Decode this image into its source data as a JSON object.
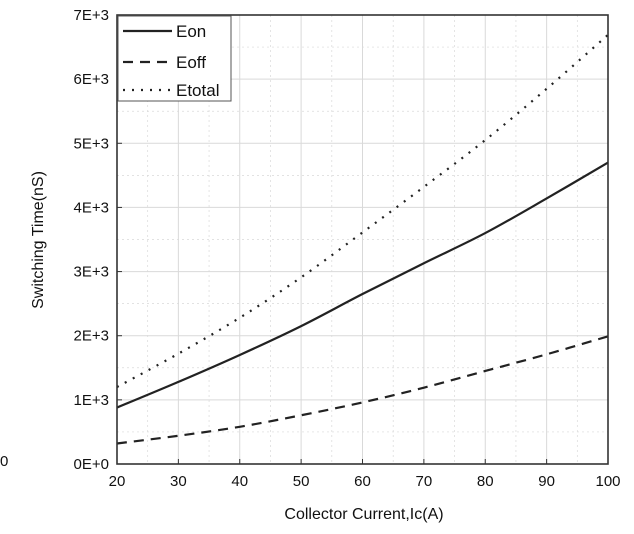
{
  "chart_data": {
    "type": "line",
    "xlabel": "Collector Current,Ic(A)",
    "ylabel": "Switching Time(nS)",
    "xlim": [
      20,
      100
    ],
    "ylim": [
      0,
      7000
    ],
    "x_ticks": [
      20,
      30,
      40,
      50,
      60,
      70,
      80,
      90,
      100
    ],
    "x_tick_labels": [
      "20",
      "30",
      "40",
      "50",
      "60",
      "70",
      "80",
      "90",
      "100"
    ],
    "y_ticks": [
      0,
      1000,
      2000,
      3000,
      4000,
      5000,
      6000,
      7000
    ],
    "y_tick_labels": [
      "0E+0",
      "1E+3",
      "2E+3",
      "3E+3",
      "4E+3",
      "5E+3",
      "6E+3",
      "7E+3"
    ],
    "grid": true,
    "legend_position": "top-left",
    "series": [
      {
        "name": "Eon",
        "style": "solid",
        "x": [
          20,
          30,
          40,
          50,
          60,
          70,
          80,
          90,
          100
        ],
        "y": [
          880,
          1280,
          1700,
          2150,
          2650,
          3130,
          3600,
          4140,
          4700
        ]
      },
      {
        "name": "Eoff",
        "style": "dashed",
        "x": [
          20,
          30,
          40,
          50,
          60,
          70,
          80,
          90,
          100
        ],
        "y": [
          320,
          440,
          580,
          760,
          960,
          1190,
          1450,
          1710,
          1990
        ]
      },
      {
        "name": "Etotal",
        "style": "dotted",
        "x": [
          20,
          30,
          40,
          50,
          60,
          70,
          80,
          90,
          100
        ],
        "y": [
          1200,
          1720,
          2280,
          2910,
          3610,
          4320,
          5050,
          5850,
          6690
        ]
      }
    ]
  },
  "stray_label": "0",
  "colors": {
    "line": "#222222",
    "grid": "#d9d9d9",
    "frame": "#333333"
  }
}
